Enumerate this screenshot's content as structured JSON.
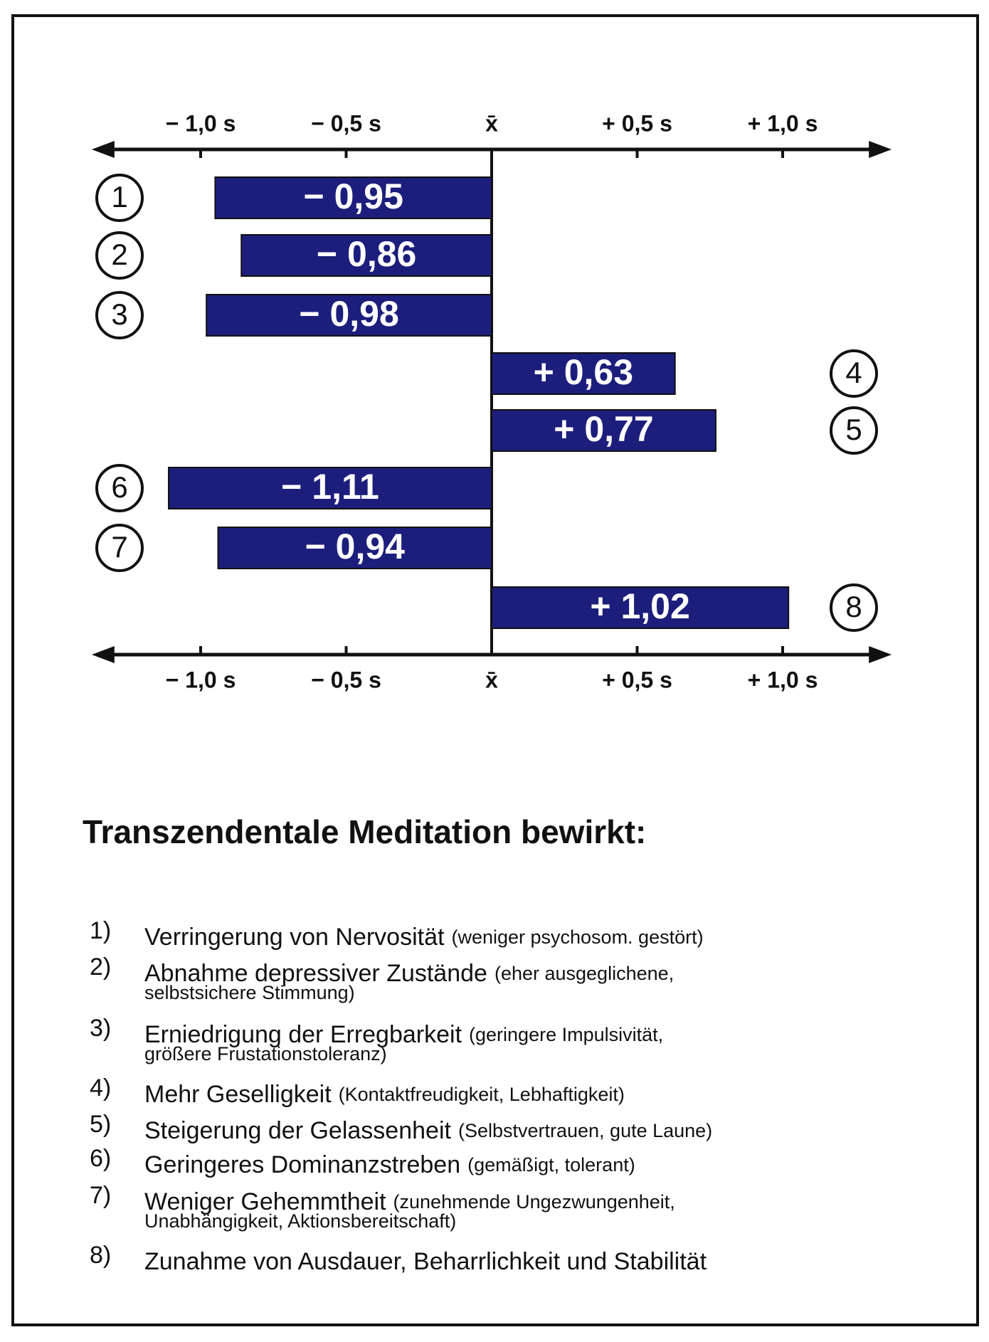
{
  "chart_data": {
    "type": "bar",
    "orientation": "horizontal",
    "title": "Transzendentale Meditation bewirkt:",
    "categories": [
      "1",
      "2",
      "3",
      "4",
      "5",
      "6",
      "7",
      "8"
    ],
    "values": [
      -0.95,
      -0.86,
      -0.98,
      0.63,
      0.77,
      -1.11,
      -0.94,
      1.02
    ],
    "value_labels": [
      "− 0,95",
      "− 0,86",
      "− 0,98",
      "+ 0,63",
      "+ 0,77",
      "− 1,11",
      "− 0,94",
      "+ 1,02"
    ],
    "color": "#1d1e7c",
    "xlim": [
      -1.35,
      1.35
    ],
    "xticks": [
      {
        "value": -1,
        "label": "− 1,0 s"
      },
      {
        "value": -0.5,
        "label": "− 0,5 s"
      },
      {
        "value": 0,
        "label": "x̄"
      },
      {
        "value": 0.5,
        "label": "+ 0,5 s"
      },
      {
        "value": 1,
        "label": "+ 1,0 s"
      }
    ],
    "notes": [
      {
        "number": "1)",
        "text": "Verringerung von Nervosität",
        "detail": [
          "(weniger psychosom. gestört)"
        ]
      },
      {
        "number": "2)",
        "text": "Abnahme depressiver Zustände",
        "detail": [
          "(eher ausgeglichene,",
          "selbstsichere Stimmung)"
        ]
      },
      {
        "number": "3)",
        "text": "Erniedrigung der Erregbarkeit",
        "detail": [
          "(geringere Impulsivität,",
          "größere Frustationstoleranz)"
        ]
      },
      {
        "number": "4)",
        "text": "Mehr Geselligkeit",
        "detail": [
          "(Kontaktfreudigkeit, Lebhaftigkeit)"
        ]
      },
      {
        "number": "5)",
        "text": "Steigerung der Gelassenheit",
        "detail": [
          "(Selbstvertrauen, gute Laune)"
        ]
      },
      {
        "number": "6)",
        "text": "Geringeres Dominanzstreben",
        "detail": [
          "(gemäßigt, tolerant)"
        ]
      },
      {
        "number": "7)",
        "text": "Weniger Gehemmtheit",
        "detail": [
          "(zunehmende Ungezwungenheit,",
          "Unabhängigkeit, Aktionsbereitschaft)"
        ]
      },
      {
        "number": "8)",
        "text": "Zunahme von Ausdauer, Beharrlichkeit und Stabilität",
        "detail": []
      }
    ]
  }
}
